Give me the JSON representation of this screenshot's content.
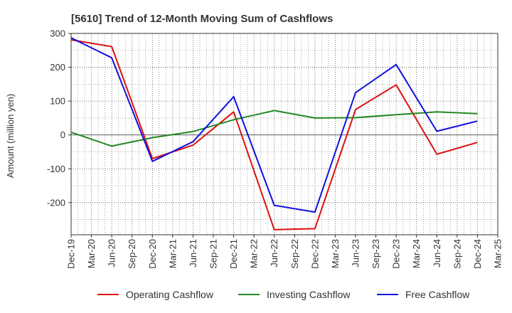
{
  "chart_data": {
    "type": "line",
    "title": "[5610]  Trend of 12-Month Moving Sum of Cashflows",
    "ylabel": "Amount (million yen)",
    "xlabel": "",
    "ylim": [
      -295,
      300
    ],
    "yticks": [
      300,
      200,
      100,
      0,
      -100,
      -200
    ],
    "categories": [
      "Dec-19",
      "Mar-20",
      "Jun-20",
      "Sep-20",
      "Dec-20",
      "Mar-21",
      "Jun-21",
      "Sep-21",
      "Dec-21",
      "Mar-22",
      "Jun-22",
      "Sep-22",
      "Dec-22",
      "Mar-23",
      "Jun-23",
      "Sep-23",
      "Dec-23",
      "Mar-24",
      "Jun-24",
      "Sep-24",
      "Dec-24",
      "Mar-25"
    ],
    "grid": true,
    "legend_position": "bottom",
    "series": [
      {
        "name": "Operating Cashflow",
        "color": "#dd1111",
        "x": [
          "Dec-19",
          "Jun-20",
          "Dec-20",
          "Jun-21",
          "Dec-21",
          "Jun-22",
          "Dec-22",
          "Jun-23",
          "Dec-23",
          "Jun-24",
          "Dec-24"
        ],
        "values": [
          281,
          261,
          -70,
          -30,
          68,
          -280,
          -277,
          75,
          148,
          -57,
          -22
        ]
      },
      {
        "name": "Investing Cashflow",
        "color": "#228822",
        "x": [
          "Dec-19",
          "Jun-20",
          "Dec-20",
          "Jun-21",
          "Dec-21",
          "Jun-22",
          "Dec-22",
          "Jun-23",
          "Dec-23",
          "Jun-24",
          "Dec-24"
        ],
        "values": [
          8,
          -33,
          -8,
          10,
          45,
          72,
          50,
          51,
          60,
          68,
          63
        ]
      },
      {
        "name": "Free Cashflow",
        "color": "#1111dd",
        "x": [
          "Dec-19",
          "Jun-20",
          "Dec-20",
          "Jun-21",
          "Dec-21",
          "Jun-22",
          "Dec-22",
          "Jun-23",
          "Dec-23",
          "Jun-24",
          "Dec-24"
        ],
        "values": [
          287,
          228,
          -78,
          -20,
          113,
          -208,
          -228,
          125,
          208,
          11,
          41
        ]
      }
    ]
  }
}
